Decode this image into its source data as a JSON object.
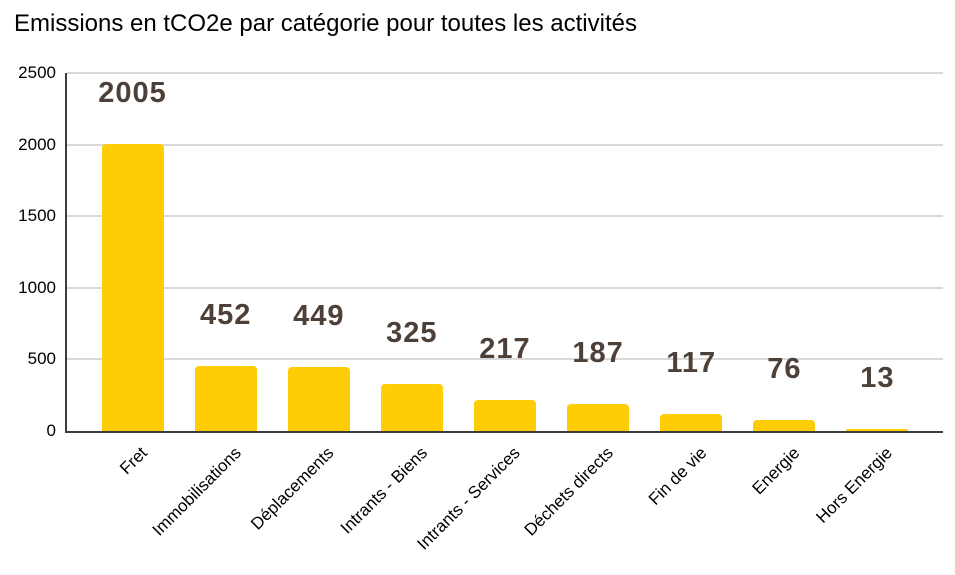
{
  "title": "Emissions en tCO2e par catégorie pour toutes les activités",
  "chart_data": {
    "type": "bar",
    "title": "Emissions en tCO2e par catégorie pour toutes les activités",
    "categories": [
      "Fret",
      "Immobilisations",
      "Déplacements",
      "Intrants - Biens",
      "Intrants - Services",
      "Déchets directs",
      "Fin de vie",
      "Energie",
      "Hors Energie"
    ],
    "values": [
      2005,
      452,
      449,
      325,
      217,
      187,
      117,
      76,
      13
    ],
    "value_labels": [
      "2005",
      "452",
      "449",
      "325",
      "217",
      "187",
      "117",
      "76",
      "13"
    ],
    "xlabel": "",
    "ylabel": "",
    "ylim": [
      0,
      2500
    ],
    "yticks": [
      0,
      500,
      1000,
      1500,
      2000,
      2500
    ],
    "grid": true,
    "legend_position": "none",
    "colors": {
      "bar": "#FFCD05",
      "value_label": "#4D4038",
      "gridline": "#D9D9D9",
      "axis": "#3D3D3D",
      "title": "#000000",
      "tick_label": "#000000"
    }
  }
}
